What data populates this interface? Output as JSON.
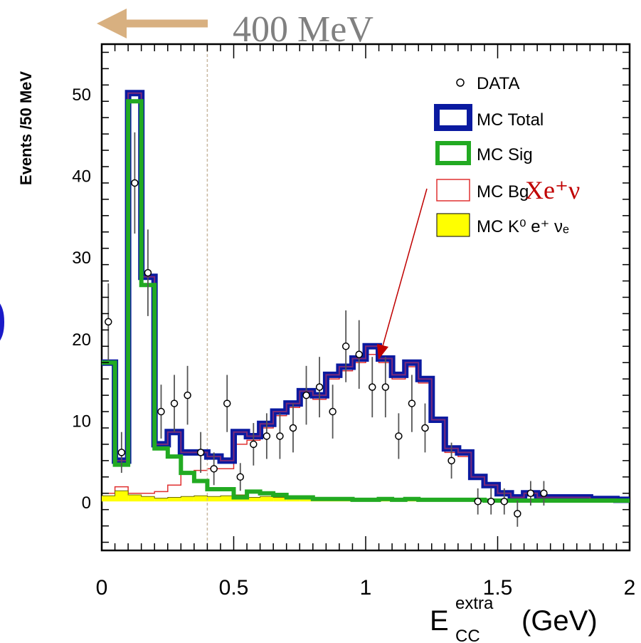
{
  "chart_data": {
    "type": "histogram",
    "bin_width": 0.05,
    "xlim": [
      0,
      2
    ],
    "ylim": [
      -6,
      56
    ],
    "xticks": [
      0,
      0.5,
      1,
      1.5,
      2
    ],
    "xtick_labels": [
      "0",
      "0.5",
      "1",
      "1.5",
      "2"
    ],
    "yticks": [
      0,
      10,
      20,
      30,
      40,
      50
    ],
    "ytick_labels": [
      "0",
      "10",
      "20",
      "30",
      "40",
      "50"
    ],
    "ylabel": "Events /50 MeV",
    "xlabel": {
      "main": "E",
      "sup": "extra",
      "sub": "CC",
      "unit": "(GeV)"
    },
    "cut_annotation": {
      "text": "400 MeV",
      "x": 0.4
    },
    "legend_position": "top-right",
    "colors": {
      "mc_total": "#0a1aa0",
      "mc_total_inner": "#7a2a7a",
      "mc_sig": "#22aa22",
      "mc_bg": "#e03030",
      "mc_k0": "#ffff00",
      "data": "#000000",
      "arrow_left": "#d8b080",
      "annotation_red": "#c00000",
      "cut_line": "#c8b8a0",
      "partial_glyph": "#1a1ac8"
    },
    "legend": [
      {
        "key": "data",
        "label": "DATA",
        "marker": "circle"
      },
      {
        "key": "mc_total",
        "label": "MC Total",
        "marker": "box-thick-blue"
      },
      {
        "key": "mc_sig",
        "label": "MC Sig",
        "marker": "box-green"
      },
      {
        "key": "mc_bg",
        "label": "MC Bg",
        "annotation": "Xe⁺ν",
        "marker": "box-red"
      },
      {
        "key": "mc_k0",
        "label": "MC K⁰ e⁺ νₑ",
        "marker": "box-yellow"
      }
    ],
    "edge_glyph": ")",
    "series": [
      {
        "name": "MC Total",
        "values": [
          17,
          5,
          50,
          27.5,
          7,
          8.5,
          6,
          6,
          5.5,
          5,
          8.5,
          8,
          9.5,
          11,
          12,
          13.5,
          13,
          15.5,
          16.5,
          17.5,
          19,
          17.5,
          15.5,
          17,
          15,
          10,
          6.5,
          6,
          3,
          2,
          1,
          0.5,
          1,
          0.5,
          0.5,
          0.5,
          0.5,
          0.3,
          0.3,
          0.2
        ]
      },
      {
        "name": "MC Sig",
        "values": [
          17,
          4.5,
          49,
          26.5,
          6.5,
          5.5,
          3.5,
          2.5,
          1.5,
          1.5,
          0.5,
          1.2,
          1,
          0.8,
          0.5,
          0.5,
          0.3,
          0.3,
          0.3,
          0.2,
          0.2,
          0.3,
          0.2,
          0.3,
          0.2,
          0.2,
          0.2,
          0.2,
          0.2,
          0.1,
          0.1,
          0.1,
          0.1,
          0.1,
          0.1,
          0.1,
          0.1,
          0.1,
          0.1,
          0.1
        ]
      },
      {
        "name": "MC Bg",
        "values": [
          1,
          1.8,
          1,
          1,
          1.2,
          2,
          3.5,
          3.8,
          4,
          4,
          7,
          7.5,
          9,
          10.5,
          11.5,
          13,
          12.5,
          15,
          16,
          17,
          18,
          17,
          15,
          16.5,
          14.5,
          10,
          6,
          5.5,
          3,
          2,
          1,
          0.5,
          1,
          0.5,
          0.5,
          0.5,
          0.5,
          0.3,
          0.3,
          0.2
        ]
      },
      {
        "name": "MC K⁰ e⁺ νₑ",
        "values": [
          0.7,
          1.3,
          0.8,
          0.6,
          0.4,
          0.5,
          0.6,
          0.7,
          0.6,
          0.7,
          0.8,
          0.5,
          0.6,
          0.5,
          0.5,
          0.4,
          0.3,
          0.3,
          0.4,
          0.3,
          0.2,
          0.3,
          0.2,
          0.2,
          0.2,
          0.2,
          0.2,
          0.2,
          0.1,
          0.1,
          0.1,
          0.1,
          0.1,
          0.1,
          0.1,
          0.1,
          0.1,
          0.1,
          0.1,
          0.1
        ]
      },
      {
        "name": "DATA",
        "points": [
          {
            "x": 0.025,
            "y": 22,
            "err": 4.7
          },
          {
            "x": 0.075,
            "y": 6,
            "err": 2.5
          },
          {
            "x": 0.125,
            "y": 39,
            "err": 6.2
          },
          {
            "x": 0.175,
            "y": 28,
            "err": 5.3
          },
          {
            "x": 0.225,
            "y": 11,
            "err": 3.3
          },
          {
            "x": 0.275,
            "y": 12,
            "err": 3.5
          },
          {
            "x": 0.325,
            "y": 13,
            "err": 3.6
          },
          {
            "x": 0.375,
            "y": 6,
            "err": 2.5
          },
          {
            "x": 0.425,
            "y": 4,
            "err": 2
          },
          {
            "x": 0.475,
            "y": 12,
            "err": 3.5
          },
          {
            "x": 0.525,
            "y": 3,
            "err": 1.7
          },
          {
            "x": 0.575,
            "y": 7,
            "err": 2.6
          },
          {
            "x": 0.625,
            "y": 8,
            "err": 2.8
          },
          {
            "x": 0.675,
            "y": 8,
            "err": 2.8
          },
          {
            "x": 0.725,
            "y": 9,
            "err": 3
          },
          {
            "x": 0.775,
            "y": 13,
            "err": 3.6
          },
          {
            "x": 0.825,
            "y": 14,
            "err": 3.7
          },
          {
            "x": 0.875,
            "y": 11,
            "err": 3.3
          },
          {
            "x": 0.925,
            "y": 19,
            "err": 4.4
          },
          {
            "x": 0.975,
            "y": 18,
            "err": 4.2
          },
          {
            "x": 1.025,
            "y": 14,
            "err": 3.7
          },
          {
            "x": 1.075,
            "y": 14,
            "err": 3.7
          },
          {
            "x": 1.125,
            "y": 8,
            "err": 2.8
          },
          {
            "x": 1.175,
            "y": 12,
            "err": 3.5
          },
          {
            "x": 1.225,
            "y": 9,
            "err": 3
          },
          {
            "x": 1.325,
            "y": 5,
            "err": 2.2
          },
          {
            "x": 1.425,
            "y": 0,
            "err": 1.6
          },
          {
            "x": 1.475,
            "y": 0,
            "err": 1.6
          },
          {
            "x": 1.525,
            "y": 0,
            "err": 1.6
          },
          {
            "x": 1.575,
            "y": -1.5,
            "err": 1.6
          },
          {
            "x": 1.625,
            "y": 1,
            "err": 1.5
          },
          {
            "x": 1.675,
            "y": 1,
            "err": 1.5
          }
        ]
      }
    ]
  }
}
